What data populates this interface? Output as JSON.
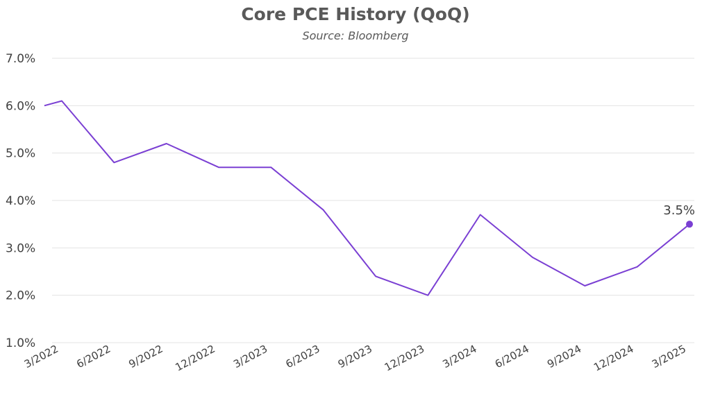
{
  "chart_data": {
    "type": "line",
    "title": "Core PCE History (QoQ)",
    "subtitle": "Source: Bloomberg",
    "ylim": [
      1.0,
      7.0
    ],
    "yticks": [
      1.0,
      2.0,
      3.0,
      4.0,
      5.0,
      6.0,
      7.0
    ],
    "ytick_labels": [
      "1.0%",
      "2.0%",
      "3.0%",
      "4.0%",
      "5.0%",
      "6.0%",
      "7.0%"
    ],
    "grid": true,
    "legend": "none",
    "x_tick_labels": [
      "3/2022",
      "6/2022",
      "9/2022",
      "12/2022",
      "3/2023",
      "6/2023",
      "9/2023",
      "12/2023",
      "3/2024",
      "6/2024",
      "9/2024",
      "12/2024",
      "3/2025"
    ],
    "series": [
      {
        "color": "#7a3fd3",
        "x": [
          "2/2022",
          "3/2022",
          "6/2022",
          "9/2022",
          "12/2022",
          "3/2023",
          "6/2023",
          "9/2023",
          "12/2023",
          "3/2024",
          "6/2024",
          "9/2024",
          "12/2024",
          "3/2025"
        ],
        "values": [
          6.0,
          6.1,
          4.8,
          5.2,
          4.7,
          4.7,
          3.8,
          2.4,
          2.0,
          3.7,
          2.8,
          2.2,
          2.6,
          3.5
        ]
      }
    ],
    "annotation": {
      "label": "3.5%",
      "x": "3/2025",
      "value": 3.5
    }
  }
}
